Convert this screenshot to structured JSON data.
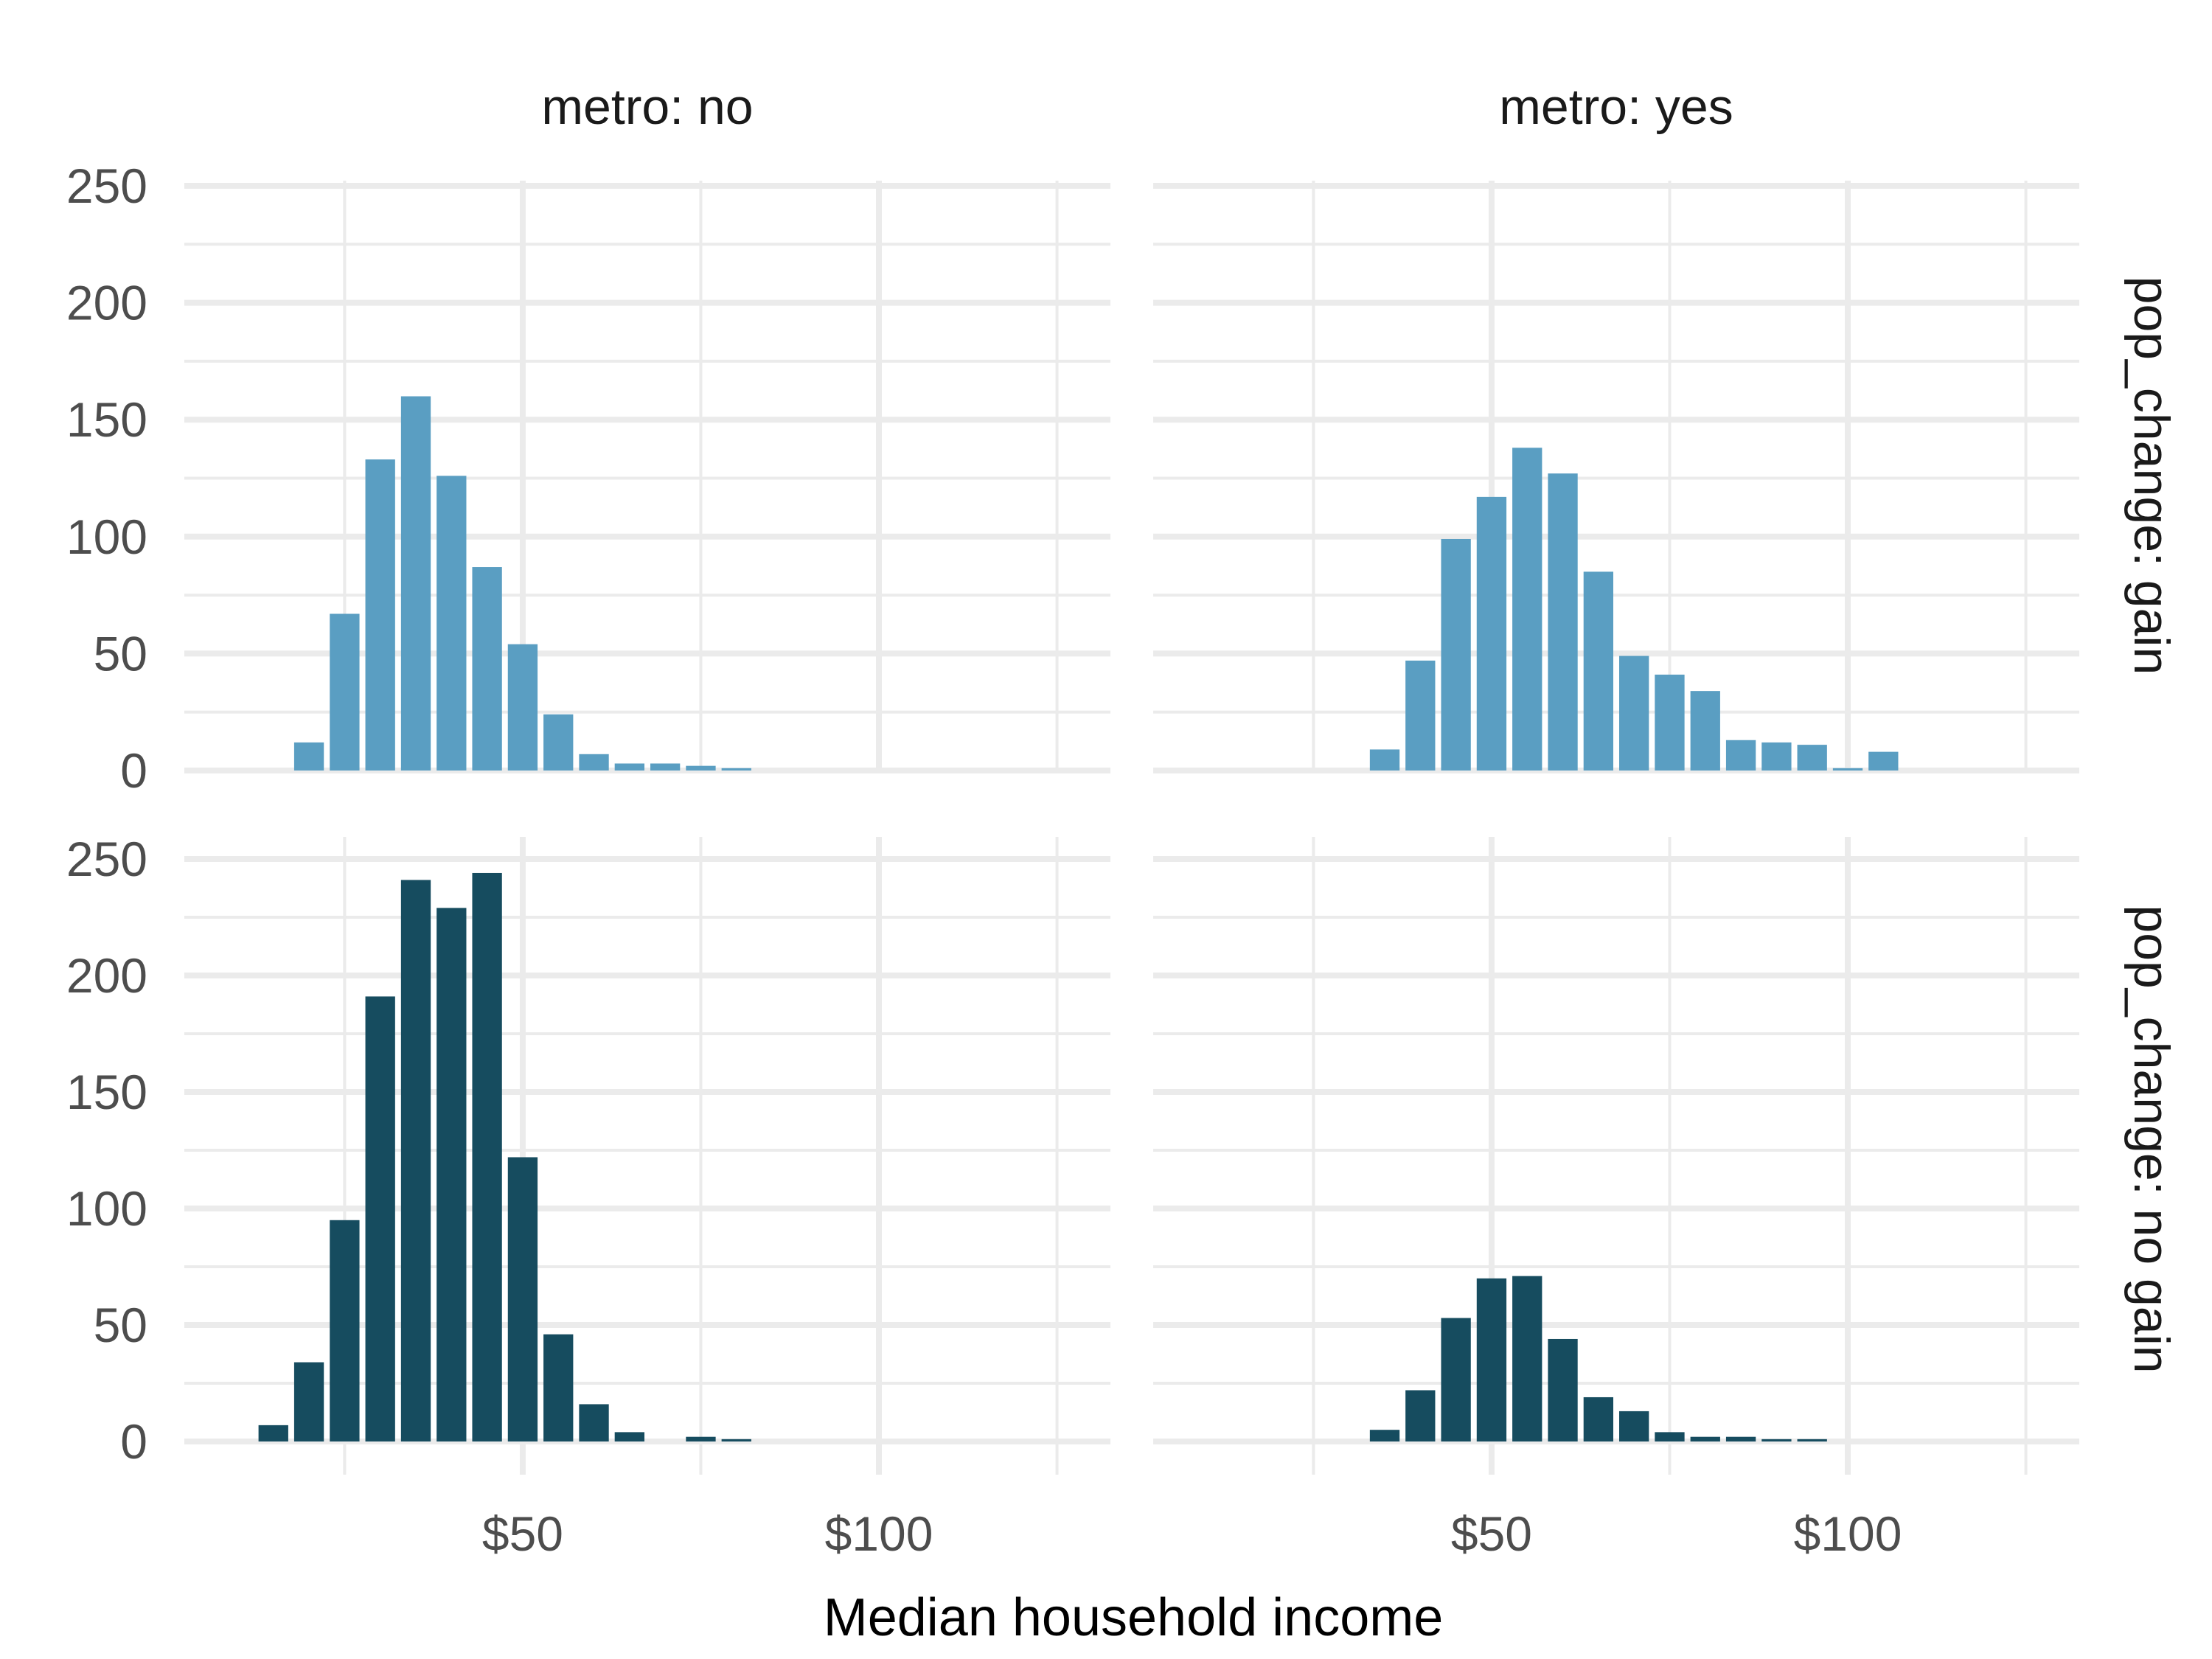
{
  "chart_data": {
    "type": "bar",
    "xlabel": "Median household income",
    "ylabel": "",
    "facet_cols": [
      "metro: no",
      "metro: yes"
    ],
    "facet_rows": [
      "pop_change: gain",
      "pop_change: no gain"
    ],
    "x_ticks": [
      {
        "value": 50,
        "label": "$50"
      },
      {
        "value": 100,
        "label": "$100"
      }
    ],
    "y_ticks": [
      "0",
      "50",
      "100",
      "150",
      "200",
      "250"
    ],
    "xlim": [
      2.5,
      132.5
    ],
    "ylim": [
      0,
      250
    ],
    "bin_width": 5,
    "bin_centers": [
      10,
      15,
      20,
      25,
      30,
      35,
      40,
      45,
      50,
      55,
      60,
      65,
      70,
      75,
      80,
      85,
      90,
      95,
      100,
      105,
      110,
      115,
      120,
      125
    ],
    "colors": {
      "gain": "#5a9ec2",
      "no_gain": "#164c5f"
    },
    "panels": [
      {
        "row": "pop_change: gain",
        "col": "metro: no",
        "values": [
          0,
          0,
          12,
          67,
          133,
          160,
          126,
          87,
          54,
          24,
          7,
          3,
          3,
          2,
          1,
          0,
          0,
          0,
          0,
          0,
          0,
          0,
          0,
          0
        ]
      },
      {
        "row": "pop_change: gain",
        "col": "metro: yes",
        "values": [
          0,
          0,
          0,
          0,
          0,
          9,
          47,
          99,
          117,
          138,
          127,
          85,
          49,
          41,
          34,
          13,
          12,
          11,
          1,
          8,
          0,
          0,
          0,
          0
        ]
      },
      {
        "row": "pop_change: no gain",
        "col": "metro: no",
        "values": [
          0,
          7,
          34,
          95,
          191,
          241,
          229,
          244,
          122,
          46,
          16,
          4,
          0,
          2,
          1,
          0,
          0,
          0,
          0,
          0,
          0,
          0,
          0,
          0
        ]
      },
      {
        "row": "pop_change: no gain",
        "col": "metro: yes",
        "values": [
          0,
          0,
          0,
          0,
          0,
          5,
          22,
          53,
          70,
          71,
          44,
          19,
          13,
          4,
          2,
          2,
          1,
          1,
          0,
          0,
          0,
          0,
          0,
          0
        ]
      }
    ]
  }
}
